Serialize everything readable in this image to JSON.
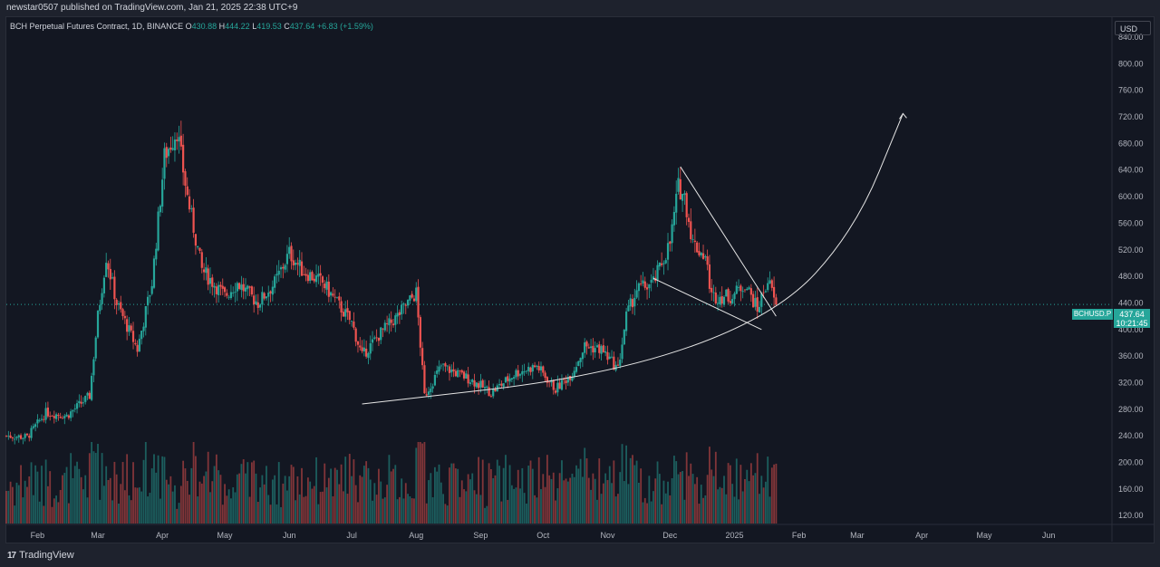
{
  "header": {
    "published": "newstar0507 published on TradingView.com, Jan 21, 2025 22:38 UTC+9"
  },
  "legend": {
    "symbol": "BCH Perpetual Futures Contract, 1D, BINANCE",
    "o_label": "O",
    "o": "430.88",
    "h_label": "H",
    "h": "444.22",
    "l_label": "L",
    "l": "419.53",
    "c_label": "C",
    "c": "437.64",
    "change": "+6.83 (+1.59%)"
  },
  "currency": "USD",
  "price_tag": {
    "symbol": "BCHUSD.P",
    "price": "437.64",
    "countdown": "10:21:45"
  },
  "footer": {
    "brand": "TradingView"
  },
  "colors": {
    "up": "#26a69a",
    "down": "#ef5350",
    "background": "#131722",
    "drawing": "#e6e6e6"
  },
  "chart_data": {
    "type": "candlestick",
    "title": "BCH Perpetual Futures Contract, 1D, BINANCE",
    "y_axis_ticks": [
      "840.00",
      "800.00",
      "760.00",
      "720.00",
      "680.00",
      "640.00",
      "600.00",
      "560.00",
      "520.00",
      "480.00",
      "440.00",
      "400.00",
      "360.00",
      "320.00",
      "280.00",
      "240.00",
      "200.00",
      "160.00",
      "120.00"
    ],
    "y_range": [
      108,
      870
    ],
    "x_axis_ticks": [
      "Feb",
      "Mar",
      "Apr",
      "May",
      "Jun",
      "Jul",
      "Aug",
      "Sep",
      "Oct",
      "Nov",
      "Dec",
      "2025",
      "Feb",
      "Mar",
      "Apr",
      "May",
      "Jun"
    ],
    "x_axis_tick_dates": [
      "2024-02-01",
      "2024-03-01",
      "2024-04-01",
      "2024-05-01",
      "2024-06-01",
      "2024-07-01",
      "2024-08-01",
      "2024-09-01",
      "2024-10-01",
      "2024-11-01",
      "2024-12-01",
      "2025-01-01",
      "2025-02-01",
      "2025-03-01",
      "2025-04-01",
      "2025-05-01",
      "2025-06-01"
    ],
    "x_range": [
      "2024-01-17",
      "2025-07-01"
    ],
    "last_price": 437.64,
    "close_keypoints": [
      [
        "2024-01-17",
        240
      ],
      [
        "2024-01-27",
        238
      ],
      [
        "2024-02-05",
        275
      ],
      [
        "2024-02-15",
        270
      ],
      [
        "2024-02-26",
        300
      ],
      [
        "2024-03-01",
        420
      ],
      [
        "2024-03-05",
        510
      ],
      [
        "2024-03-10",
        440
      ],
      [
        "2024-03-20",
        370
      ],
      [
        "2024-03-27",
        470
      ],
      [
        "2024-04-02",
        660
      ],
      [
        "2024-04-08",
        700
      ],
      [
        "2024-04-13",
        600
      ],
      [
        "2024-04-20",
        490
      ],
      [
        "2024-05-01",
        450
      ],
      [
        "2024-05-07",
        470
      ],
      [
        "2024-05-17",
        440
      ],
      [
        "2024-05-25",
        470
      ],
      [
        "2024-06-01",
        515
      ],
      [
        "2024-06-07",
        490
      ],
      [
        "2024-06-17",
        470
      ],
      [
        "2024-06-24",
        440
      ],
      [
        "2024-07-01",
        410
      ],
      [
        "2024-07-06",
        360
      ],
      [
        "2024-07-15",
        395
      ],
      [
        "2024-07-23",
        420
      ],
      [
        "2024-07-28",
        440
      ],
      [
        "2024-08-01",
        455
      ],
      [
        "2024-08-05",
        300
      ],
      [
        "2024-08-13",
        345
      ],
      [
        "2024-08-27",
        325
      ],
      [
        "2024-09-06",
        305
      ],
      [
        "2024-09-18",
        335
      ],
      [
        "2024-09-28",
        345
      ],
      [
        "2024-10-07",
        310
      ],
      [
        "2024-10-15",
        335
      ],
      [
        "2024-10-21",
        375
      ],
      [
        "2024-10-29",
        370
      ],
      [
        "2024-11-06",
        340
      ],
      [
        "2024-11-10",
        420
      ],
      [
        "2024-11-15",
        460
      ],
      [
        "2024-11-23",
        470
      ],
      [
        "2024-12-01",
        530
      ],
      [
        "2024-12-05",
        615
      ],
      [
        "2024-12-08",
        600
      ],
      [
        "2024-12-12",
        530
      ],
      [
        "2024-12-18",
        510
      ],
      [
        "2024-12-21",
        450
      ],
      [
        "2024-12-31",
        450
      ],
      [
        "2025-01-06",
        470
      ],
      [
        "2025-01-12",
        430
      ],
      [
        "2025-01-17",
        475
      ],
      [
        "2025-01-21",
        437.64
      ]
    ],
    "annotations": {
      "rounded_bottom_curve": [
        [
          "2024-07-06",
          288
        ],
        [
          "2024-11-01",
          330
        ],
        [
          "2025-01-21",
          420
        ],
        [
          "2025-02-28",
          550
        ],
        [
          "2025-03-23",
          725
        ]
      ],
      "falling_wedge_upper": [
        [
          "2024-12-06",
          645
        ],
        [
          "2025-01-21",
          420
        ]
      ],
      "falling_wedge_lower": [
        [
          "2024-11-23",
          477
        ],
        [
          "2025-01-14",
          400
        ]
      ]
    }
  }
}
